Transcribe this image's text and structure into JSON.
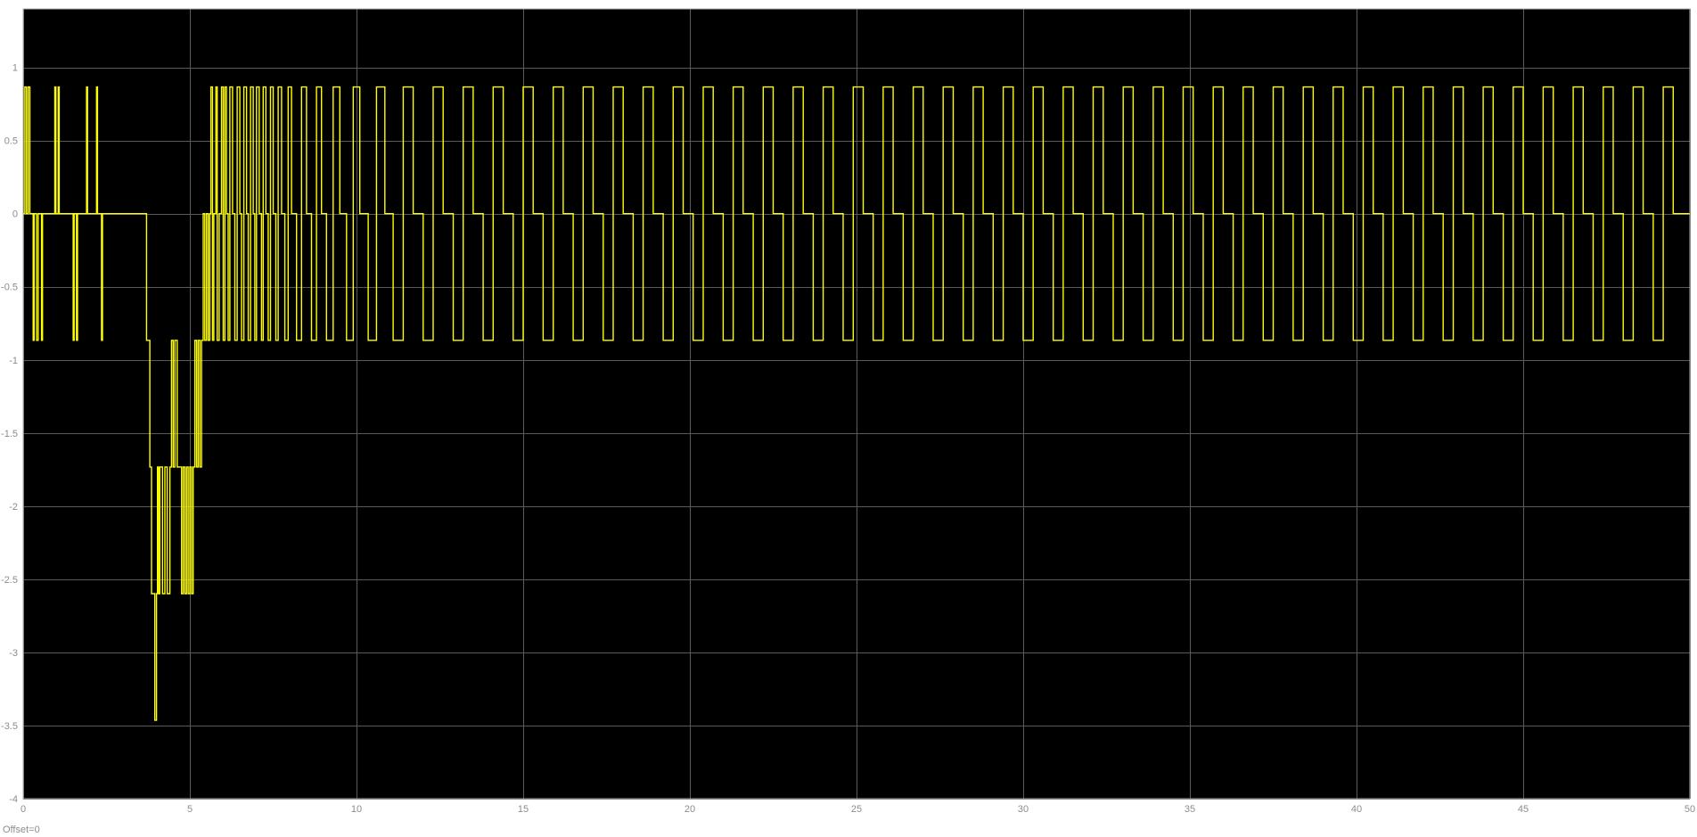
{
  "chart_data": {
    "type": "line",
    "title": "",
    "xlabel": "",
    "ylabel": "",
    "xlim": [
      0,
      50
    ],
    "ylim": [
      -4,
      1.4
    ],
    "grid": true,
    "legend": "none",
    "colors": {
      "axes_background": "#000000",
      "grid": "#5a5a5a",
      "series": "#ffff00",
      "tick_text": "#8c8c8c"
    },
    "x_ticks": [
      0,
      5,
      10,
      15,
      20,
      25,
      30,
      35,
      40,
      45,
      50
    ],
    "x_tick_labels": [
      "0",
      "5",
      "10",
      "15",
      "20",
      "25",
      "30",
      "35",
      "40",
      "45",
      "50"
    ],
    "y_ticks": [
      1,
      0.5,
      0,
      -0.5,
      -1,
      -1.5,
      -2,
      -2.5,
      -3,
      -3.5,
      -4
    ],
    "y_tick_labels": [
      "1",
      "0.5",
      "0",
      "-0.5",
      "-1",
      "-1.5",
      "-2",
      "-2.5",
      "-3",
      "-3.5",
      "-4"
    ],
    "series": [
      {
        "levels": [
          0.866,
          0,
          -0.866,
          -1.732,
          -2.598,
          -3.464
        ],
        "t": [
          0.0,
          0.05,
          0.1,
          0.15,
          0.2,
          0.3,
          0.33,
          0.4,
          0.45,
          0.55,
          0.58,
          0.95,
          0.98,
          1.05,
          1.08,
          1.5,
          1.53,
          1.6,
          1.63,
          1.9,
          1.93,
          2.2,
          2.23,
          2.35,
          2.38,
          3.7,
          3.8,
          3.85,
          3.95,
          4.0,
          4.03,
          4.06,
          4.1,
          4.18,
          4.25,
          4.32,
          4.4,
          4.45,
          4.5,
          4.55,
          4.62,
          4.68,
          4.75,
          4.8,
          4.85,
          4.9,
          4.95,
          5.0,
          5.05,
          5.1,
          5.15,
          5.2,
          5.25,
          5.3,
          5.35,
          5.4,
          5.45,
          5.5,
          5.55,
          5.6,
          5.63,
          5.68,
          5.72,
          5.78,
          5.82,
          5.88,
          5.95,
          6.0,
          6.05,
          6.1,
          6.15,
          6.2,
          6.28,
          6.35,
          6.42,
          6.5,
          6.55,
          6.62,
          6.7,
          6.75,
          6.82,
          6.9,
          6.95,
          7.0,
          7.08,
          7.15,
          7.2,
          7.28,
          7.35,
          7.42,
          7.5,
          7.58,
          7.65,
          7.75,
          7.85,
          7.95,
          8.05,
          8.2,
          8.35,
          8.5,
          8.65,
          8.8,
          8.95,
          9.1,
          9.3,
          9.5,
          9.7,
          9.9,
          10.1,
          10.35,
          10.6,
          10.85,
          11.1,
          11.4,
          11.7,
          12.0,
          12.3,
          12.6,
          12.9,
          13.2,
          13.5,
          13.8,
          14.1,
          14.4,
          14.7,
          15.0,
          15.3,
          15.6,
          15.9,
          16.2,
          16.5,
          16.8,
          17.1,
          17.4,
          17.7,
          18.0,
          18.3,
          18.6,
          18.9,
          19.2,
          19.5,
          19.8,
          20.1,
          20.4,
          20.7,
          21.0,
          21.3,
          21.6,
          21.9,
          22.2,
          22.5,
          22.8,
          23.1,
          23.4,
          23.7,
          24.0,
          24.3,
          24.6,
          24.9,
          25.2,
          25.5,
          25.8,
          26.1,
          26.4,
          26.7,
          27.0,
          27.3,
          27.6,
          27.9,
          28.2,
          28.5,
          28.8,
          29.1,
          29.4,
          29.7,
          30.0,
          30.3,
          30.6,
          30.9,
          31.2,
          31.5,
          31.8,
          32.1,
          32.4,
          32.7,
          33.0,
          33.3,
          33.6,
          33.9,
          34.2,
          34.5,
          34.8,
          35.1,
          35.4,
          35.7,
          36.0,
          36.3,
          36.6,
          36.9,
          37.2,
          37.5,
          37.8,
          38.1,
          38.4,
          38.7,
          39.0,
          39.3,
          39.6,
          39.9,
          40.2,
          40.5,
          40.8,
          41.1,
          41.4,
          41.7,
          42.0,
          42.3,
          42.6,
          42.9,
          43.2,
          43.5,
          43.8,
          44.1,
          44.4,
          44.7,
          45.0,
          45.3,
          45.6,
          45.9,
          46.2,
          46.5,
          46.8,
          47.1,
          47.4,
          47.7,
          48.0,
          48.3,
          48.6,
          48.9,
          49.2,
          49.5,
          49.8,
          50.0
        ],
        "v": [
          0,
          0.866,
          0,
          0.866,
          0,
          -0.866,
          0,
          -0.866,
          0,
          -0.866,
          0,
          0.866,
          0,
          0.866,
          0,
          -0.866,
          0,
          -0.866,
          0,
          0.866,
          0,
          0.866,
          0,
          -0.866,
          0,
          -0.866,
          -1.732,
          -2.598,
          -3.464,
          -2.598,
          -1.732,
          -2.598,
          -1.732,
          -2.598,
          -1.732,
          -2.598,
          -1.732,
          -0.866,
          -1.732,
          -0.866,
          -1.732,
          -1.732,
          -2.598,
          -1.732,
          -2.598,
          -1.732,
          -2.598,
          -1.732,
          -2.598,
          -1.732,
          -0.866,
          -1.732,
          -0.866,
          -1.732,
          -0.866,
          0,
          -0.866,
          0,
          -0.866,
          0,
          0.866,
          -0.866,
          0,
          0.866,
          -0.866,
          0,
          0.866,
          -0.866,
          0.866,
          0,
          -0.866,
          0.866,
          0,
          -0.866,
          0.866,
          0,
          -0.866,
          0.866,
          0,
          -0.866,
          0.866,
          0,
          -0.866,
          0.866,
          0,
          -0.866,
          0.866,
          0,
          -0.866,
          0.866,
          0,
          -0.866,
          0.866,
          0,
          -0.866,
          0.866,
          0,
          -0.866,
          0.866,
          0,
          -0.866,
          0.866,
          0,
          -0.866,
          0.866,
          0,
          -0.866,
          0.866,
          0,
          -0.866,
          0.866,
          0,
          -0.866,
          0.866,
          0,
          -0.866,
          0.866,
          0,
          -0.866,
          0.866,
          0,
          -0.866,
          0.866,
          0,
          -0.866,
          0.866,
          0,
          -0.866,
          0.866,
          0,
          -0.866,
          0.866,
          0,
          -0.866,
          0.866,
          0,
          -0.866,
          0.866,
          0,
          -0.866,
          0.866,
          0,
          -0.866,
          0.866,
          0,
          -0.866,
          0.866,
          0,
          -0.866,
          0.866,
          0,
          -0.866,
          0.866,
          0,
          -0.866,
          0.866,
          0,
          -0.866,
          0.866,
          0,
          -0.866,
          0.866,
          0,
          -0.866,
          0.866,
          0,
          -0.866,
          0.866,
          0,
          -0.866,
          0.866,
          0,
          -0.866,
          0.866,
          0,
          -0.866,
          0.866,
          0,
          -0.866,
          0.866,
          0,
          -0.866,
          0.866,
          0,
          -0.866,
          0.866,
          0,
          -0.866,
          0.866,
          0,
          -0.866,
          0.866,
          0,
          -0.866,
          0.866,
          0,
          -0.866,
          0.866,
          0,
          -0.866,
          0.866,
          0,
          -0.866,
          0.866,
          0,
          -0.866,
          0.866,
          0,
          -0.866,
          0.866,
          0,
          -0.866,
          0.866,
          0,
          -0.866,
          0.866,
          0,
          -0.866,
          0.866,
          0,
          -0.866,
          0.866,
          0,
          -0.866,
          0.866,
          0,
          -0.866,
          0.866,
          0,
          -0.866,
          0.866,
          0,
          -0.866,
          0.866,
          0,
          -0.866,
          0.866,
          0,
          -0.866,
          0.866,
          0,
          0
        ]
      }
    ]
  },
  "footer": {
    "offset_label": "Offset=0"
  }
}
